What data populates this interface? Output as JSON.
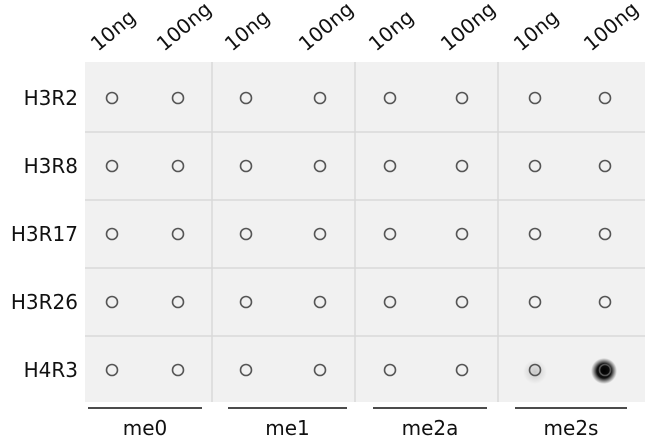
{
  "column_labels": [
    "10ng",
    "100ng",
    "10ng",
    "100ng",
    "10ng",
    "100ng",
    "10ng",
    "100ng"
  ],
  "row_labels": [
    "H3R2",
    "H3R8",
    "H3R17",
    "H3R26",
    "H4R3"
  ],
  "group_labels": [
    "me0",
    "me1",
    "me2a",
    "me2s"
  ]
}
